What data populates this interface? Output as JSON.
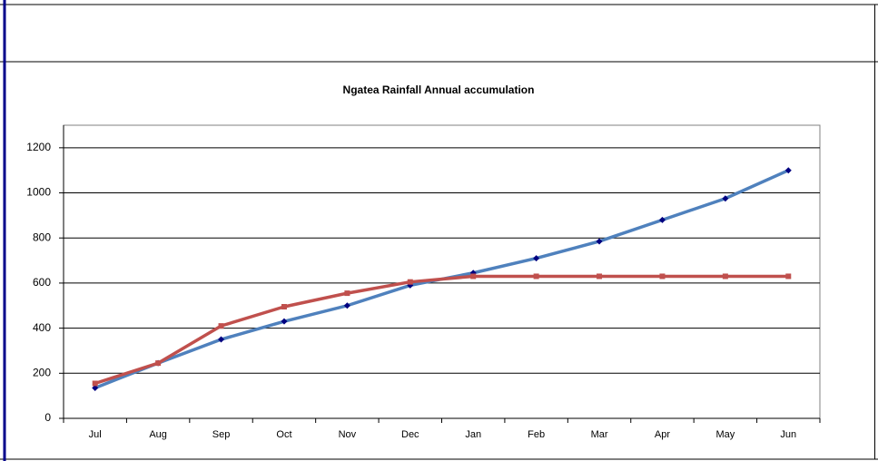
{
  "chart_data": {
    "type": "line",
    "title": "Ngatea Rainfall Annual accumulation",
    "categories": [
      "Jul",
      "Aug",
      "Sep",
      "Oct",
      "Nov",
      "Dec",
      "Jan",
      "Feb",
      "Mar",
      "Apr",
      "May",
      "Jun"
    ],
    "series": [
      {
        "color": "#4f81bd",
        "marker_color": "#000080",
        "marker": "diamond",
        "values": [
          135,
          245,
          350,
          430,
          500,
          590,
          645,
          710,
          785,
          880,
          975,
          1100
        ]
      },
      {
        "color": "#c0504d",
        "marker_color": "#c0504d",
        "marker": "square",
        "values": [
          155,
          245,
          410,
          495,
          555,
          605,
          630,
          630,
          630,
          630,
          630,
          630
        ]
      }
    ],
    "ylim": [
      0,
      1300
    ],
    "yticks": [
      0,
      200,
      400,
      600,
      800,
      1000,
      1200
    ],
    "grid": true
  }
}
